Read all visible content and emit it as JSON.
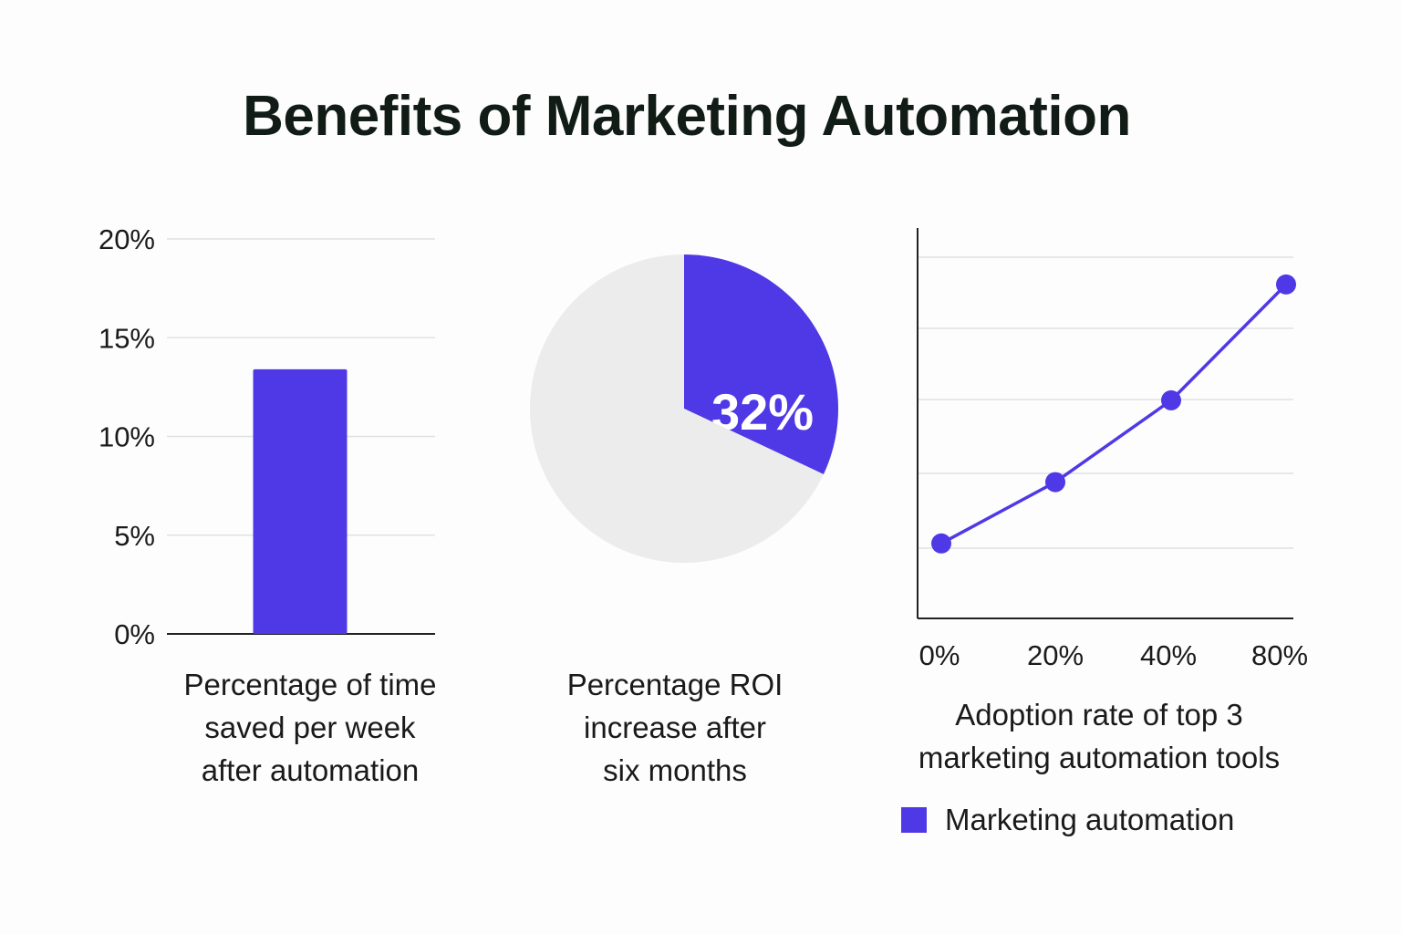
{
  "title": "Benefits of Marketing Automation",
  "colors": {
    "accent": "#4f39e6",
    "pie_rest": "#ececec",
    "grid": "#e2e2e2",
    "axis": "#222222"
  },
  "chart_data": [
    {
      "type": "bar",
      "categories": [
        ""
      ],
      "values": [
        13.4
      ],
      "ylim": [
        0,
        20
      ],
      "yticks": [
        "0%",
        "5%",
        "10%",
        "15%",
        "20%"
      ],
      "caption": [
        "Percentage of time",
        "saved per week",
        "after automation"
      ]
    },
    {
      "type": "pie",
      "slices": [
        {
          "label": "32%",
          "value": 32
        },
        {
          "label": "",
          "value": 68
        }
      ],
      "caption": [
        "Percentage ROI",
        "increase after",
        "six months"
      ]
    },
    {
      "type": "line",
      "x": [
        "0%",
        "20%",
        "40%",
        "80%"
      ],
      "series": [
        {
          "name": "Marketing automation",
          "values": [
            1.1,
            2.0,
            3.2,
            4.9
          ]
        }
      ],
      "ylim": [
        0,
        5.3
      ],
      "caption": [
        "Adoption rate of top 3",
        "marketing automation tools"
      ],
      "legend": "bottom"
    }
  ]
}
